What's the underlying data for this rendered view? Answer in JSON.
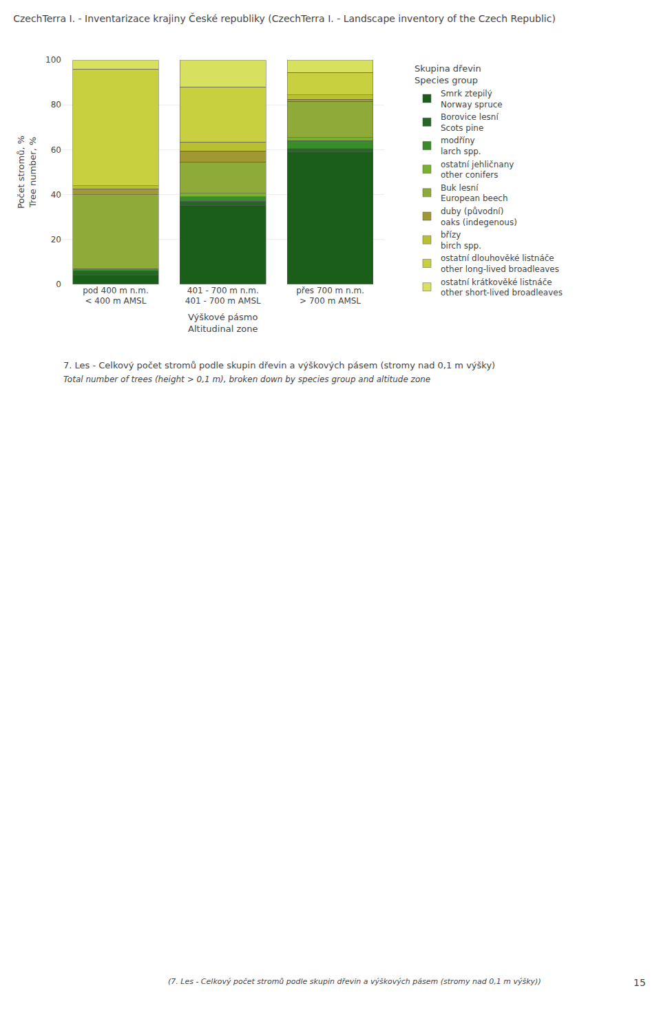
{
  "chart_data": {
    "type": "bar",
    "stacked": true,
    "title": "CzechTerra I. - Inventarizace krajiny České republiky (CzechTerra I. - Landscape inventory of the Czech Republic)",
    "ylabel": [
      "Počet stromů, %",
      "Tree number, %"
    ],
    "xlabel": [
      "Výškové pásmo",
      "Altitudinal zone"
    ],
    "categories": [
      [
        "pod 400 m n.m.",
        "< 400 m AMSL"
      ],
      [
        "401 - 700 m n.m.",
        "401 - 700 m AMSL"
      ],
      [
        "přes 700 m n.m.",
        "> 700 m AMSL"
      ]
    ],
    "legend_title": [
      "Skupina dřevin",
      "Species group"
    ],
    "legend": "right",
    "series": [
      {
        "name": [
          "Smrk ztepilý",
          "Norway spruce"
        ],
        "color": "#1a5e1a",
        "values": [
          4.0,
          35.0,
          59.0
        ]
      },
      {
        "name": [
          "Borovice lesní",
          "Scots pine"
        ],
        "color": "#276627",
        "values": [
          2.0,
          2.0,
          1.5
        ]
      },
      {
        "name": [
          "modříny",
          "larch spp."
        ],
        "color": "#3a8c2a",
        "values": [
          0.5,
          2.0,
          3.5
        ]
      },
      {
        "name": [
          "ostatní jehličnany",
          "other conifers"
        ],
        "color": "#7ab030",
        "values": [
          0.5,
          1.5,
          1.5
        ]
      },
      {
        "name": [
          "Buk lesní",
          "European beech"
        ],
        "color": "#8eaa38",
        "values": [
          33.0,
          14.0,
          16.0
        ]
      },
      {
        "name": [
          "duby (původní)",
          "oaks (indegenous)"
        ],
        "color": "#a09832",
        "values": [
          2.5,
          5.0,
          1.0
        ]
      },
      {
        "name": [
          "břízy",
          "birch spp."
        ],
        "color": "#b8c030",
        "values": [
          1.5,
          4.0,
          2.0
        ]
      },
      {
        "name": [
          "ostatní dlouhověké listnáče",
          "other long-lived broadleaves"
        ],
        "color": "#c8d040",
        "values": [
          52.0,
          24.5,
          10.0
        ]
      },
      {
        "name": [
          "ostatní krátkověké listnáče",
          "other short-lived broadleaves"
        ],
        "color": "#d8e060",
        "values": [
          4.0,
          12.0,
          5.5
        ]
      }
    ],
    "ylim": [
      0,
      100
    ],
    "yticks": [
      0,
      20,
      40,
      60,
      80,
      100
    ],
    "grid": true,
    "annotations": [
      "7. Les - Celkový počet stromů podle skupin dřevin a výškových pásem (stromy nad 0,1 m výšky)",
      "Total number of trees (height > 0,1 m), broken down by species group and altitude zone",
      "(7. Les - Celkový počet stromů podle skupin dřevin a výškových pásem (stromy nad 0,1 m výšky))",
      "15"
    ]
  }
}
